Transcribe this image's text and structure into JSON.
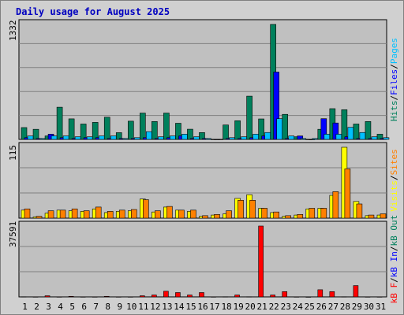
{
  "chart_data": {
    "type": "bar",
    "title": "Daily usage for August 2025",
    "days": [
      "1",
      "2",
      "3",
      "4",
      "5",
      "6",
      "7",
      "8",
      "9",
      "10",
      "11",
      "12",
      "13",
      "14",
      "15",
      "16",
      "17",
      "18",
      "19",
      "20",
      "21",
      "22",
      "23",
      "24",
      "25",
      "26",
      "27",
      "28",
      "29",
      "30",
      "31"
    ],
    "weekend_days": [
      "3",
      "9",
      "10",
      "16",
      "17",
      "23",
      "24",
      "30",
      "31"
    ],
    "panels": [
      {
        "id": "hits-files-pages",
        "scale_label": "1332",
        "ymax": 1332,
        "series": [
          {
            "name": "Hits",
            "color": "#00805c",
            "values": [
              137,
              117,
              40,
              373,
              238,
              178,
              197,
              257,
              78,
              211,
              305,
              207,
              305,
              187,
              118,
              79,
              0,
              167,
              216,
              501,
              237,
              1332,
              290,
              30,
              0,
              117,
              356,
              344,
              178,
              207,
              60
            ]
          },
          {
            "name": "Files",
            "color": "#0000ff",
            "values": [
              20,
              10,
              60,
              20,
              10,
              20,
              20,
              10,
              10,
              10,
              20,
              10,
              20,
              40,
              10,
              10,
              0,
              10,
              10,
              20,
              40,
              780,
              10,
              40,
              0,
              240,
              190,
              30,
              10,
              10,
              10
            ]
          },
          {
            "name": "Pages",
            "color": "#00c0ff",
            "values": [
              40,
              10,
              40,
              40,
              30,
              30,
              40,
              40,
              10,
              20,
              90,
              30,
              40,
              60,
              30,
              10,
              0,
              20,
              30,
              60,
              80,
              240,
              40,
              10,
              10,
              60,
              60,
              140,
              80,
              30,
              20
            ]
          }
        ],
        "side_labels": [
          "Hits",
          "/",
          "Files",
          "/",
          "Pages"
        ]
      },
      {
        "id": "sites-visits",
        "scale_label": "115",
        "ymax": 115,
        "series": [
          {
            "name": "Visits",
            "color": "#ffff00",
            "values": [
              13,
              2,
              8,
              13,
              12,
              11,
              15,
              9,
              11,
              12,
              31,
              10,
              18,
              13,
              11,
              3,
              5,
              7,
              32,
              38,
              16,
              9,
              3,
              5,
              15,
              16,
              37,
              115,
              27,
              4,
              5
            ]
          },
          {
            "name": "Sites",
            "color": "#ff8000",
            "values": [
              15,
              3,
              12,
              13,
              15,
              12,
              18,
              11,
              13,
              14,
              30,
              12,
              19,
              13,
              13,
              4,
              6,
              12,
              29,
              29,
              16,
              10,
              4,
              6,
              16,
              16,
              43,
              80,
              23,
              5,
              7
            ]
          }
        ],
        "side_labels": [
          "Visits",
          "/",
          "Sites"
        ]
      },
      {
        "id": "kbytes",
        "scale_label": "37591",
        "ymax": 37591,
        "series": [
          {
            "name": "KB F",
            "color": "#ff0000",
            "values": [
              100,
              50,
              600,
              50,
              300,
              50,
              50,
              300,
              50,
              50,
              600,
              1000,
              3000,
              2300,
              1000,
              2300,
              50,
              100,
              1000,
              100,
              37591,
              1000,
              2800,
              50,
              0,
              3800,
              2800,
              100,
              6000,
              50,
              50
            ]
          }
        ],
        "side_labels": [
          "kB F",
          "/",
          "kB In",
          "/",
          "kB Out"
        ],
        "side_colors": [
          "#ff0000",
          "#000000",
          "#0000ff",
          "#000000",
          "#00805c"
        ]
      }
    ]
  }
}
